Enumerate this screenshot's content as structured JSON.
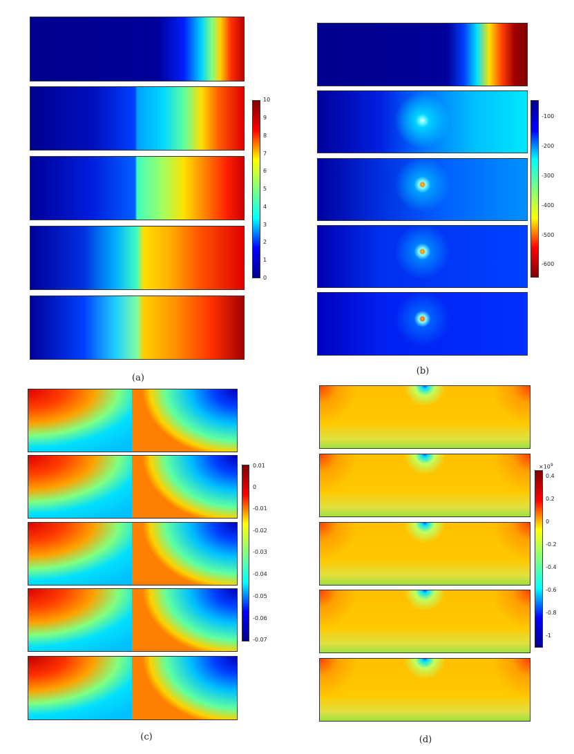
{
  "figure": {
    "panels": [
      {
        "caption": "(a)",
        "colorbar": {
          "ticks": [
            "10",
            "9",
            "8",
            "7",
            "6",
            "5",
            "4",
            "3",
            "2",
            "1",
            "0"
          ],
          "min": 0,
          "max": 10,
          "colormap": "jet"
        },
        "frames": 5
      },
      {
        "caption": "(b)",
        "colorbar": {
          "ticks": [
            "-100",
            "-200",
            "-300",
            "-400",
            "-500",
            "-600"
          ],
          "min": -650,
          "max": -50,
          "colormap": "jet-reversed"
        },
        "frames": 5
      },
      {
        "caption": "(c)",
        "colorbar": {
          "ticks": [
            "0.01",
            "0",
            "-0.01",
            "-0.02",
            "-0.03",
            "-0.04",
            "-0.05",
            "-0.06",
            "-0.07"
          ],
          "min": -0.07,
          "max": 0.01,
          "colormap": "jet"
        },
        "frames": 5
      },
      {
        "caption": "(d)",
        "colorbar": {
          "exponent": "×10",
          "exponent_power": "9",
          "ticks": [
            "0.4",
            "0.2",
            "0",
            "-0.2",
            "-0.4",
            "-0.6",
            "-0.8",
            "-1"
          ],
          "min": -1.1,
          "max": 0.45,
          "colormap": "jet"
        },
        "frames": 5
      }
    ]
  }
}
